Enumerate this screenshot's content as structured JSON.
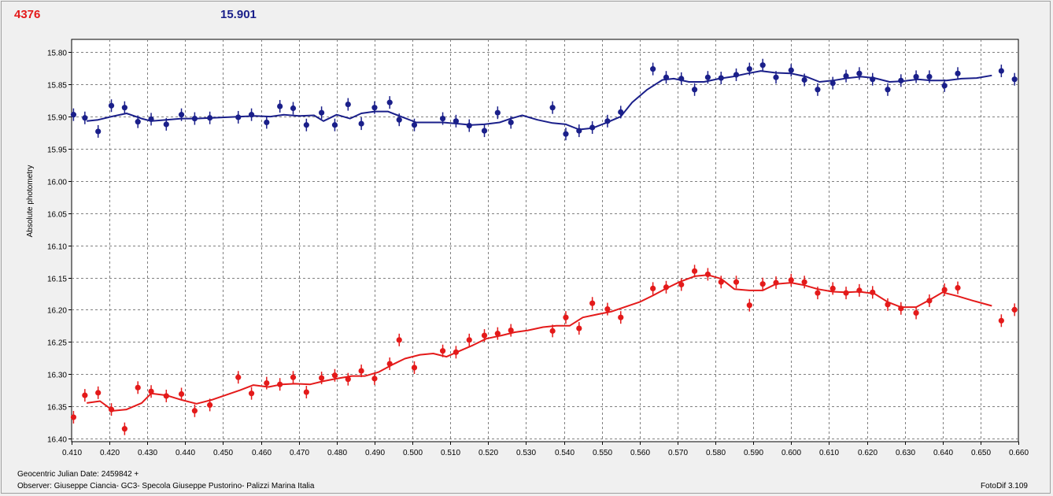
{
  "header": {
    "left_value": "4376",
    "right_value": "15.901"
  },
  "footer": {
    "jd_label": "Geocentric Julian Date: 2459842 +",
    "observer": "Observer: Giuseppe Ciancia- GC3- Specola Giuseppe Pustorino- Palizzi Marina Italia",
    "software": "FotoDif 3.109"
  },
  "colors": {
    "red_series": "#e41a1a",
    "blue_series": "#1a1f8a",
    "plot_bg": "#ffffff",
    "grid": "#808080"
  },
  "chart_data": {
    "type": "scatter",
    "ylabel": "Absolute photometry",
    "xlabel": "",
    "xlim": [
      0.41,
      0.66
    ],
    "ylim": [
      16.4,
      15.78
    ],
    "y_inverted": true,
    "grid": true,
    "xticks": [
      "0.410",
      "0.420",
      "0.430",
      "0.440",
      "0.450",
      "0.460",
      "0.470",
      "0.480",
      "0.490",
      "0.500",
      "0.510",
      "0.520",
      "0.530",
      "0.540",
      "0.550",
      "0.560",
      "0.570",
      "0.580",
      "0.590",
      "0.600",
      "0.610",
      "0.620",
      "0.630",
      "0.640",
      "0.650",
      "0.660"
    ],
    "yticks": [
      "15.80",
      "15.85",
      "15.90",
      "15.95",
      "16.00",
      "16.05",
      "16.10",
      "16.15",
      "16.20",
      "16.25",
      "16.30",
      "16.35",
      "16.40"
    ],
    "series": [
      {
        "color": "#1a1f8a",
        "points": [
          [
            0.4105,
            15.897
          ],
          [
            0.4135,
            15.902
          ],
          [
            0.417,
            15.923
          ],
          [
            0.4205,
            15.883
          ],
          [
            0.424,
            15.886
          ],
          [
            0.4275,
            15.908
          ],
          [
            0.431,
            15.904
          ],
          [
            0.435,
            15.912
          ],
          [
            0.439,
            15.897
          ],
          [
            0.4425,
            15.903
          ],
          [
            0.4465,
            15.902
          ],
          [
            0.454,
            15.901
          ],
          [
            0.4575,
            15.897
          ],
          [
            0.4615,
            15.909
          ],
          [
            0.465,
            15.884
          ],
          [
            0.4685,
            15.887
          ],
          [
            0.472,
            15.913
          ],
          [
            0.476,
            15.894
          ],
          [
            0.4795,
            15.913
          ],
          [
            0.483,
            15.881
          ],
          [
            0.4865,
            15.911
          ],
          [
            0.49,
            15.886
          ],
          [
            0.494,
            15.878
          ],
          [
            0.4965,
            15.905
          ],
          [
            0.5005,
            15.913
          ],
          [
            0.508,
            15.903
          ],
          [
            0.5115,
            15.907
          ],
          [
            0.515,
            15.914
          ],
          [
            0.519,
            15.922
          ],
          [
            0.5225,
            15.894
          ],
          [
            0.526,
            15.909
          ],
          [
            0.537,
            15.886
          ],
          [
            0.5405,
            15.927
          ],
          [
            0.544,
            15.922
          ],
          [
            0.5475,
            15.917
          ],
          [
            0.5515,
            15.907
          ],
          [
            0.555,
            15.893
          ],
          [
            0.5635,
            15.826
          ],
          [
            0.567,
            15.839
          ],
          [
            0.571,
            15.841
          ],
          [
            0.5745,
            15.858
          ],
          [
            0.578,
            15.839
          ],
          [
            0.5815,
            15.84
          ],
          [
            0.5855,
            15.835
          ],
          [
            0.589,
            15.826
          ],
          [
            0.5925,
            15.82
          ],
          [
            0.596,
            15.839
          ],
          [
            0.6,
            15.828
          ],
          [
            0.6035,
            15.843
          ],
          [
            0.607,
            15.858
          ],
          [
            0.611,
            15.848
          ],
          [
            0.6145,
            15.837
          ],
          [
            0.618,
            15.833
          ],
          [
            0.6215,
            15.842
          ],
          [
            0.6255,
            15.858
          ],
          [
            0.629,
            15.844
          ],
          [
            0.633,
            15.838
          ],
          [
            0.6365,
            15.838
          ],
          [
            0.6405,
            15.852
          ],
          [
            0.644,
            15.833
          ],
          [
            0.6555,
            15.829
          ],
          [
            0.659,
            15.842
          ]
        ],
        "fit": [
          [
            0.414,
            15.907
          ],
          [
            0.417,
            15.905
          ],
          [
            0.4205,
            15.9
          ],
          [
            0.4245,
            15.895
          ],
          [
            0.4285,
            15.903
          ],
          [
            0.431,
            15.907
          ],
          [
            0.435,
            15.905
          ],
          [
            0.439,
            15.903
          ],
          [
            0.443,
            15.903
          ],
          [
            0.447,
            15.902
          ],
          [
            0.451,
            15.901
          ],
          [
            0.4545,
            15.9
          ],
          [
            0.4585,
            15.899
          ],
          [
            0.4625,
            15.9
          ],
          [
            0.466,
            15.897
          ],
          [
            0.47,
            15.899
          ],
          [
            0.474,
            15.898
          ],
          [
            0.4765,
            15.907
          ],
          [
            0.48,
            15.897
          ],
          [
            0.4835,
            15.903
          ],
          [
            0.4865,
            15.895
          ],
          [
            0.49,
            15.892
          ],
          [
            0.4935,
            15.892
          ],
          [
            0.497,
            15.9
          ],
          [
            0.501,
            15.909
          ],
          [
            0.5045,
            15.909
          ],
          [
            0.508,
            15.909
          ],
          [
            0.512,
            15.911
          ],
          [
            0.5155,
            15.913
          ],
          [
            0.519,
            15.912
          ],
          [
            0.523,
            15.909
          ],
          [
            0.526,
            15.903
          ],
          [
            0.529,
            15.898
          ],
          [
            0.533,
            15.905
          ],
          [
            0.537,
            15.91
          ],
          [
            0.5405,
            15.912
          ],
          [
            0.544,
            15.92
          ],
          [
            0.5475,
            15.918
          ],
          [
            0.551,
            15.91
          ],
          [
            0.555,
            15.9
          ],
          [
            0.558,
            15.878
          ],
          [
            0.562,
            15.858
          ],
          [
            0.566,
            15.843
          ],
          [
            0.569,
            15.841
          ],
          [
            0.573,
            15.846
          ],
          [
            0.577,
            15.846
          ],
          [
            0.581,
            15.841
          ],
          [
            0.5845,
            15.838
          ],
          [
            0.5885,
            15.833
          ],
          [
            0.592,
            15.829
          ],
          [
            0.596,
            15.832
          ],
          [
            0.6,
            15.833
          ],
          [
            0.604,
            15.838
          ],
          [
            0.6075,
            15.846
          ],
          [
            0.611,
            15.844
          ],
          [
            0.615,
            15.84
          ],
          [
            0.6185,
            15.838
          ],
          [
            0.622,
            15.84
          ],
          [
            0.626,
            15.846
          ],
          [
            0.6295,
            15.845
          ],
          [
            0.6335,
            15.842
          ],
          [
            0.637,
            15.844
          ],
          [
            0.641,
            15.844
          ],
          [
            0.645,
            15.841
          ],
          [
            0.649,
            15.84
          ],
          [
            0.653,
            15.836
          ]
        ]
      },
      {
        "color": "#e41a1a",
        "points": [
          [
            0.4105,
            16.367
          ],
          [
            0.4135,
            16.333
          ],
          [
            0.417,
            16.329
          ],
          [
            0.4205,
            16.355
          ],
          [
            0.424,
            16.385
          ],
          [
            0.4275,
            16.321
          ],
          [
            0.431,
            16.327
          ],
          [
            0.435,
            16.334
          ],
          [
            0.439,
            16.331
          ],
          [
            0.4425,
            16.357
          ],
          [
            0.4465,
            16.348
          ],
          [
            0.454,
            16.305
          ],
          [
            0.4575,
            16.33
          ],
          [
            0.4615,
            16.314
          ],
          [
            0.465,
            16.316
          ],
          [
            0.4685,
            16.305
          ],
          [
            0.472,
            16.328
          ],
          [
            0.476,
            16.306
          ],
          [
            0.4795,
            16.302
          ],
          [
            0.483,
            16.308
          ],
          [
            0.4865,
            16.295
          ],
          [
            0.49,
            16.307
          ],
          [
            0.494,
            16.284
          ],
          [
            0.4965,
            16.247
          ],
          [
            0.5005,
            16.29
          ],
          [
            0.508,
            16.264
          ],
          [
            0.5115,
            16.266
          ],
          [
            0.515,
            16.247
          ],
          [
            0.519,
            16.24
          ],
          [
            0.5225,
            16.237
          ],
          [
            0.526,
            16.232
          ],
          [
            0.537,
            16.233
          ],
          [
            0.5405,
            16.212
          ],
          [
            0.544,
            16.229
          ],
          [
            0.5475,
            16.19
          ],
          [
            0.5515,
            16.199
          ],
          [
            0.555,
            16.212
          ],
          [
            0.5635,
            16.167
          ],
          [
            0.567,
            16.165
          ],
          [
            0.571,
            16.161
          ],
          [
            0.5745,
            16.14
          ],
          [
            0.578,
            16.145
          ],
          [
            0.5815,
            16.157
          ],
          [
            0.5855,
            16.157
          ],
          [
            0.589,
            16.193
          ],
          [
            0.5925,
            16.16
          ],
          [
            0.596,
            16.158
          ],
          [
            0.6,
            16.154
          ],
          [
            0.6035,
            16.157
          ],
          [
            0.607,
            16.174
          ],
          [
            0.611,
            16.167
          ],
          [
            0.6145,
            16.174
          ],
          [
            0.618,
            16.17
          ],
          [
            0.6215,
            16.173
          ],
          [
            0.6255,
            16.192
          ],
          [
            0.629,
            16.198
          ],
          [
            0.633,
            16.205
          ],
          [
            0.6365,
            16.186
          ],
          [
            0.6405,
            16.169
          ],
          [
            0.644,
            16.166
          ],
          [
            0.6555,
            16.217
          ],
          [
            0.659,
            16.2
          ]
        ],
        "fit": [
          [
            0.414,
            16.345
          ],
          [
            0.4175,
            16.342
          ],
          [
            0.421,
            16.357
          ],
          [
            0.4245,
            16.355
          ],
          [
            0.4285,
            16.345
          ],
          [
            0.431,
            16.33
          ],
          [
            0.435,
            16.333
          ],
          [
            0.439,
            16.34
          ],
          [
            0.443,
            16.346
          ],
          [
            0.447,
            16.34
          ],
          [
            0.451,
            16.332
          ],
          [
            0.4545,
            16.325
          ],
          [
            0.458,
            16.317
          ],
          [
            0.462,
            16.32
          ],
          [
            0.4655,
            16.316
          ],
          [
            0.469,
            16.315
          ],
          [
            0.473,
            16.316
          ],
          [
            0.4765,
            16.311
          ],
          [
            0.48,
            16.307
          ],
          [
            0.484,
            16.303
          ],
          [
            0.4875,
            16.303
          ],
          [
            0.491,
            16.297
          ],
          [
            0.4945,
            16.286
          ],
          [
            0.498,
            16.276
          ],
          [
            0.502,
            16.27
          ],
          [
            0.5055,
            16.268
          ],
          [
            0.509,
            16.273
          ],
          [
            0.5125,
            16.264
          ],
          [
            0.516,
            16.255
          ],
          [
            0.5195,
            16.245
          ],
          [
            0.5235,
            16.24
          ],
          [
            0.527,
            16.235
          ],
          [
            0.5305,
            16.232
          ],
          [
            0.5345,
            16.227
          ],
          [
            0.538,
            16.225
          ],
          [
            0.5415,
            16.225
          ],
          [
            0.545,
            16.212
          ],
          [
            0.549,
            16.207
          ],
          [
            0.5525,
            16.203
          ],
          [
            0.556,
            16.196
          ],
          [
            0.56,
            16.188
          ],
          [
            0.5635,
            16.178
          ],
          [
            0.567,
            16.167
          ],
          [
            0.5705,
            16.157
          ],
          [
            0.5745,
            16.148
          ],
          [
            0.578,
            16.146
          ],
          [
            0.5815,
            16.152
          ],
          [
            0.585,
            16.168
          ],
          [
            0.589,
            16.17
          ],
          [
            0.5925,
            16.17
          ],
          [
            0.596,
            16.16
          ],
          [
            0.6,
            16.158
          ],
          [
            0.6035,
            16.162
          ],
          [
            0.607,
            16.168
          ],
          [
            0.611,
            16.172
          ],
          [
            0.6145,
            16.173
          ],
          [
            0.618,
            16.172
          ],
          [
            0.622,
            16.175
          ],
          [
            0.6255,
            16.188
          ],
          [
            0.629,
            16.196
          ],
          [
            0.633,
            16.196
          ],
          [
            0.6365,
            16.185
          ],
          [
            0.64,
            16.173
          ],
          [
            0.644,
            16.179
          ],
          [
            0.648,
            16.186
          ],
          [
            0.653,
            16.194
          ]
        ]
      }
    ]
  }
}
